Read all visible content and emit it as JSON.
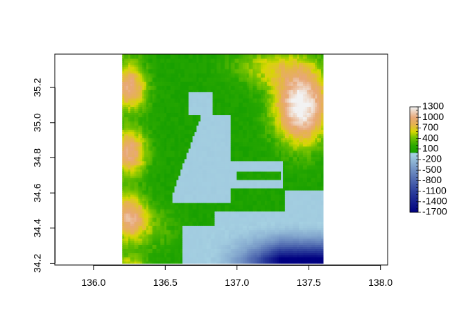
{
  "chart_data": {
    "type": "heatmap",
    "title": "",
    "xlabel": "",
    "ylabel": "",
    "xlim": [
      135.73,
      138.05
    ],
    "ylim": [
      34.19,
      35.39
    ],
    "x_ticks": [
      136.0,
      136.5,
      137.0,
      137.5,
      138.0
    ],
    "x_tick_labels": [
      "136.0",
      "136.5",
      "137.0",
      "137.5",
      "138.0"
    ],
    "y_ticks": [
      34.2,
      34.4,
      34.6,
      34.8,
      35.0,
      35.2
    ],
    "y_tick_labels": [
      "34.2",
      "34.4",
      "34.6",
      "34.8",
      "35.0",
      "35.2"
    ],
    "raster_extent": {
      "xmin": 136.2,
      "xmax": 137.6,
      "ymin": 34.2,
      "ymax": 35.39
    },
    "value_range": [
      -1700,
      1300
    ],
    "legend": {
      "position": "right",
      "ticks": [
        1300,
        1000,
        700,
        400,
        100,
        -200,
        -500,
        -800,
        -1100,
        -1400,
        -1700
      ],
      "tick_labels": [
        "1300",
        "1000",
        "700",
        "400",
        "100",
        "-200",
        "-500",
        "-800",
        "-1100",
        "-1400",
        "-1700"
      ]
    },
    "color_stops": [
      {
        "value": -1700,
        "color": "#000080"
      },
      {
        "value": -1100,
        "color": "#2c3f9c"
      },
      {
        "value": -500,
        "color": "#6f8fc2"
      },
      {
        "value": -50,
        "color": "#a6d1e2"
      },
      {
        "value": 0,
        "color": "#9ccde0"
      },
      {
        "value": 1,
        "color": "#18a000"
      },
      {
        "value": 200,
        "color": "#2aa800"
      },
      {
        "value": 450,
        "color": "#7cc400"
      },
      {
        "value": 600,
        "color": "#d6d800"
      },
      {
        "value": 800,
        "color": "#e5b34e"
      },
      {
        "value": 1000,
        "color": "#e8a878"
      },
      {
        "value": 1300,
        "color": "#f2f2f2"
      }
    ],
    "features": {
      "west_mountains": {
        "lon": 136.25,
        "lat_range": [
          34.2,
          35.3
        ],
        "peak": 950
      },
      "northeast_mountains": {
        "lon": 137.45,
        "lat": 35.1,
        "peak": 1300
      },
      "ise_bay_depth": -80,
      "mikawa_bay_depth": -60,
      "trench_depth": -1700
    }
  }
}
